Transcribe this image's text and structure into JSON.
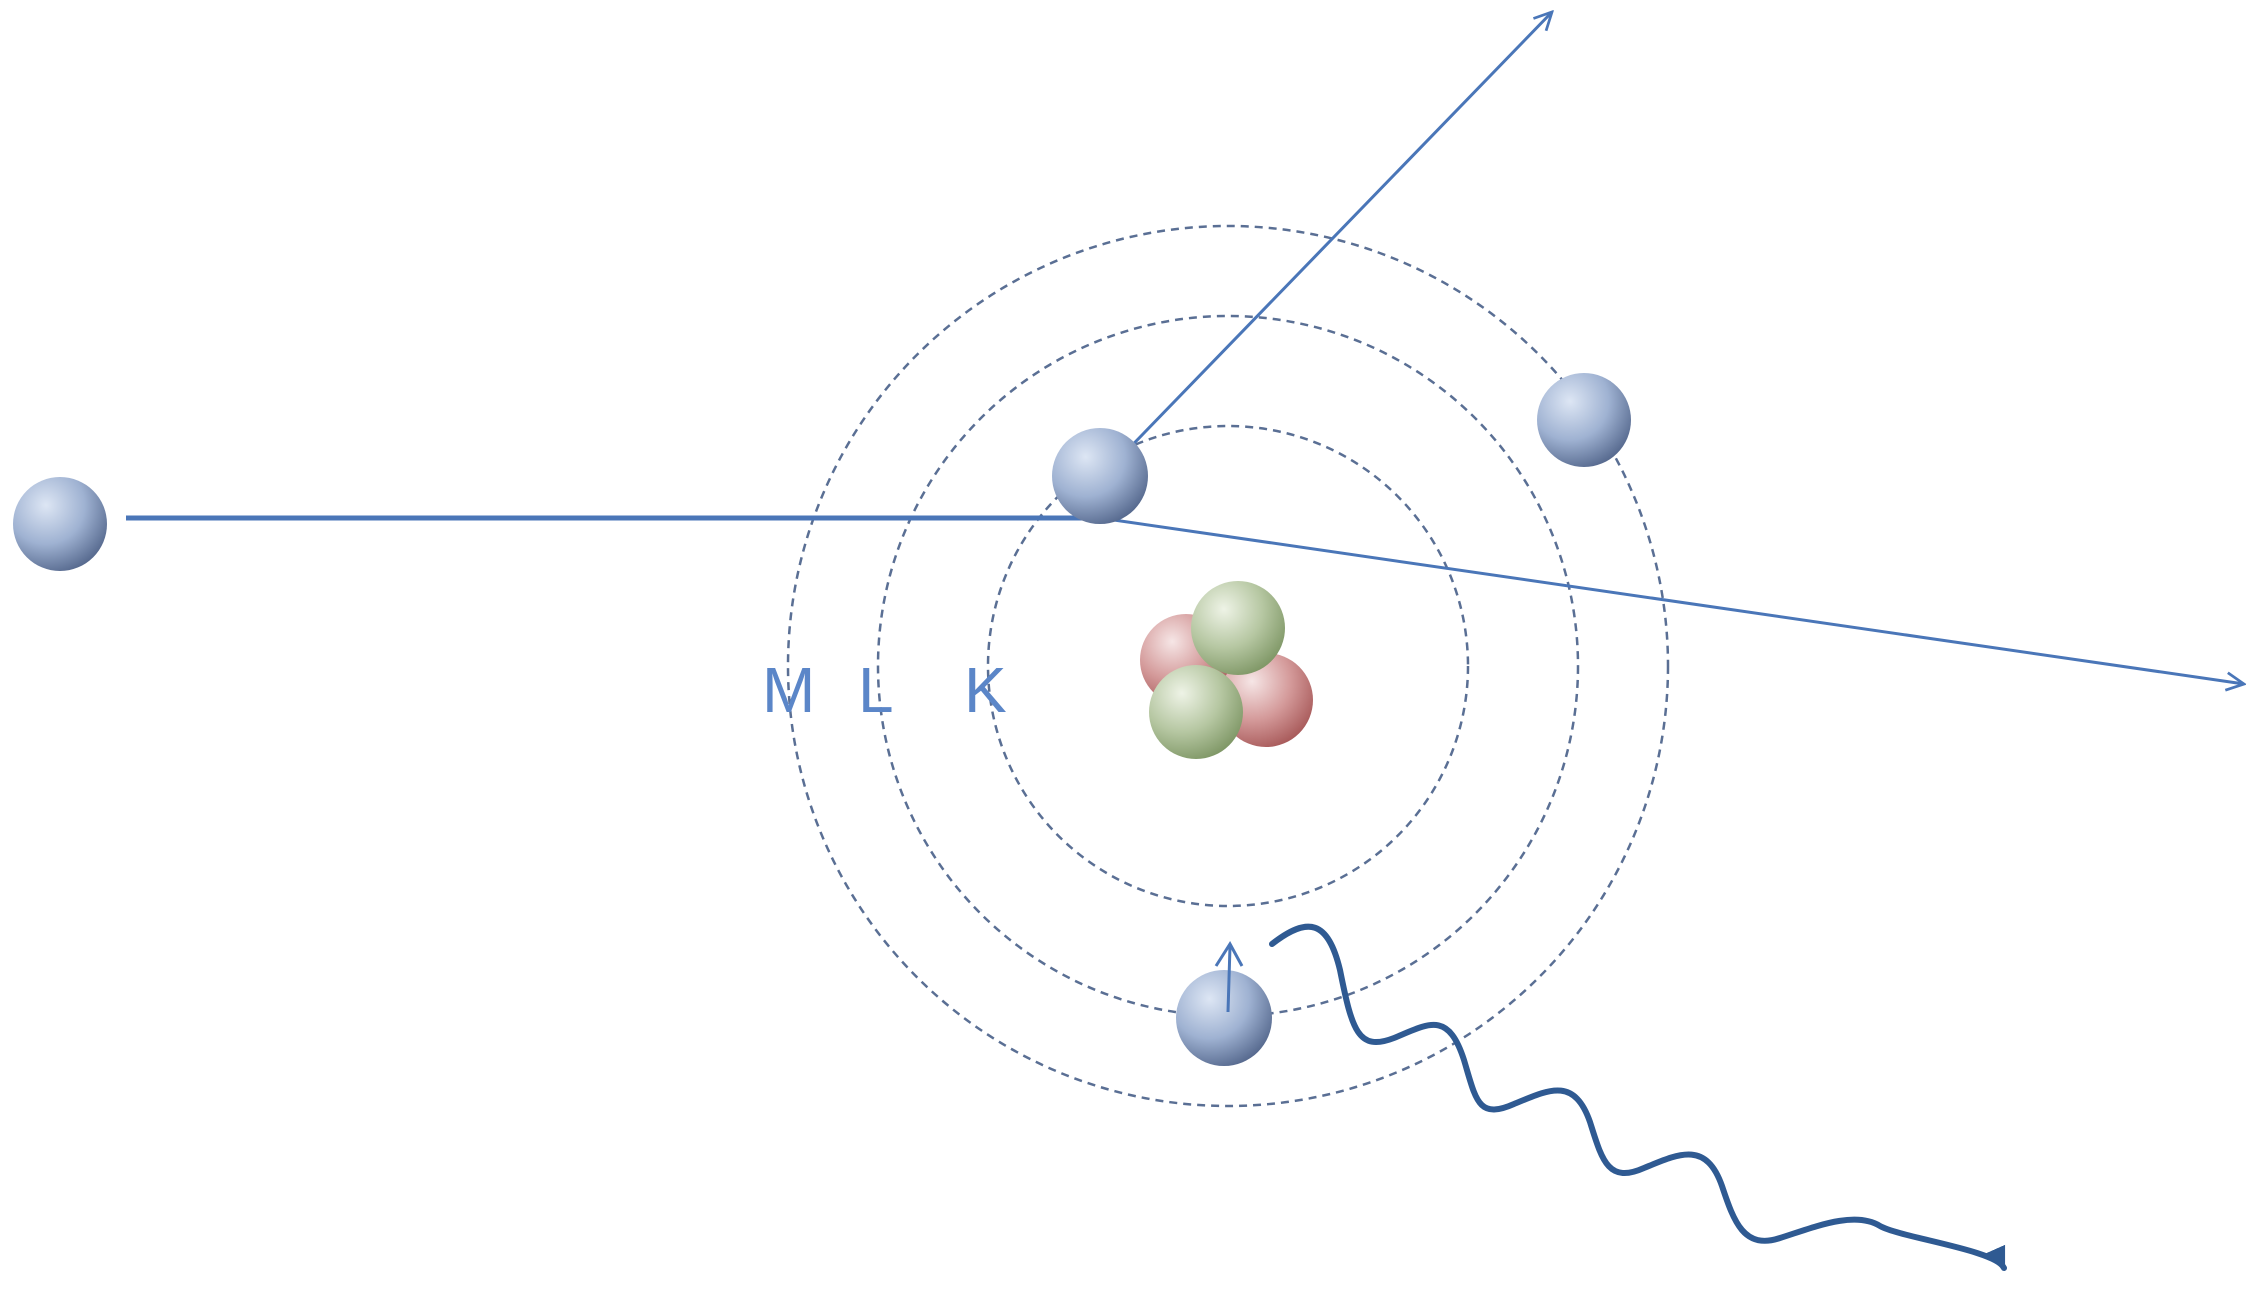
{
  "shell_labels": {
    "m": "M",
    "l": "L",
    "k": "K"
  },
  "colors": {
    "line": "#4a76b8",
    "orbit": "#5a6f94",
    "photon": "#2f5a92",
    "label": "#5b86c8",
    "electron_light": "#dde6f4",
    "electron_mid": "#9fb2d2",
    "electron_dark": "#56698e",
    "proton_light": "#f6e6e6",
    "proton_mid": "#d49a9a",
    "proton_dark": "#a85a5a",
    "neutron_light": "#eef3e6",
    "neutron_mid": "#b6c7a2",
    "neutron_dark": "#7f9766"
  },
  "icons": {
    "incident_particle": "electron-sphere-icon",
    "photon": "wavy-arrow-icon",
    "nucleus": "nucleus-cluster-icon"
  }
}
